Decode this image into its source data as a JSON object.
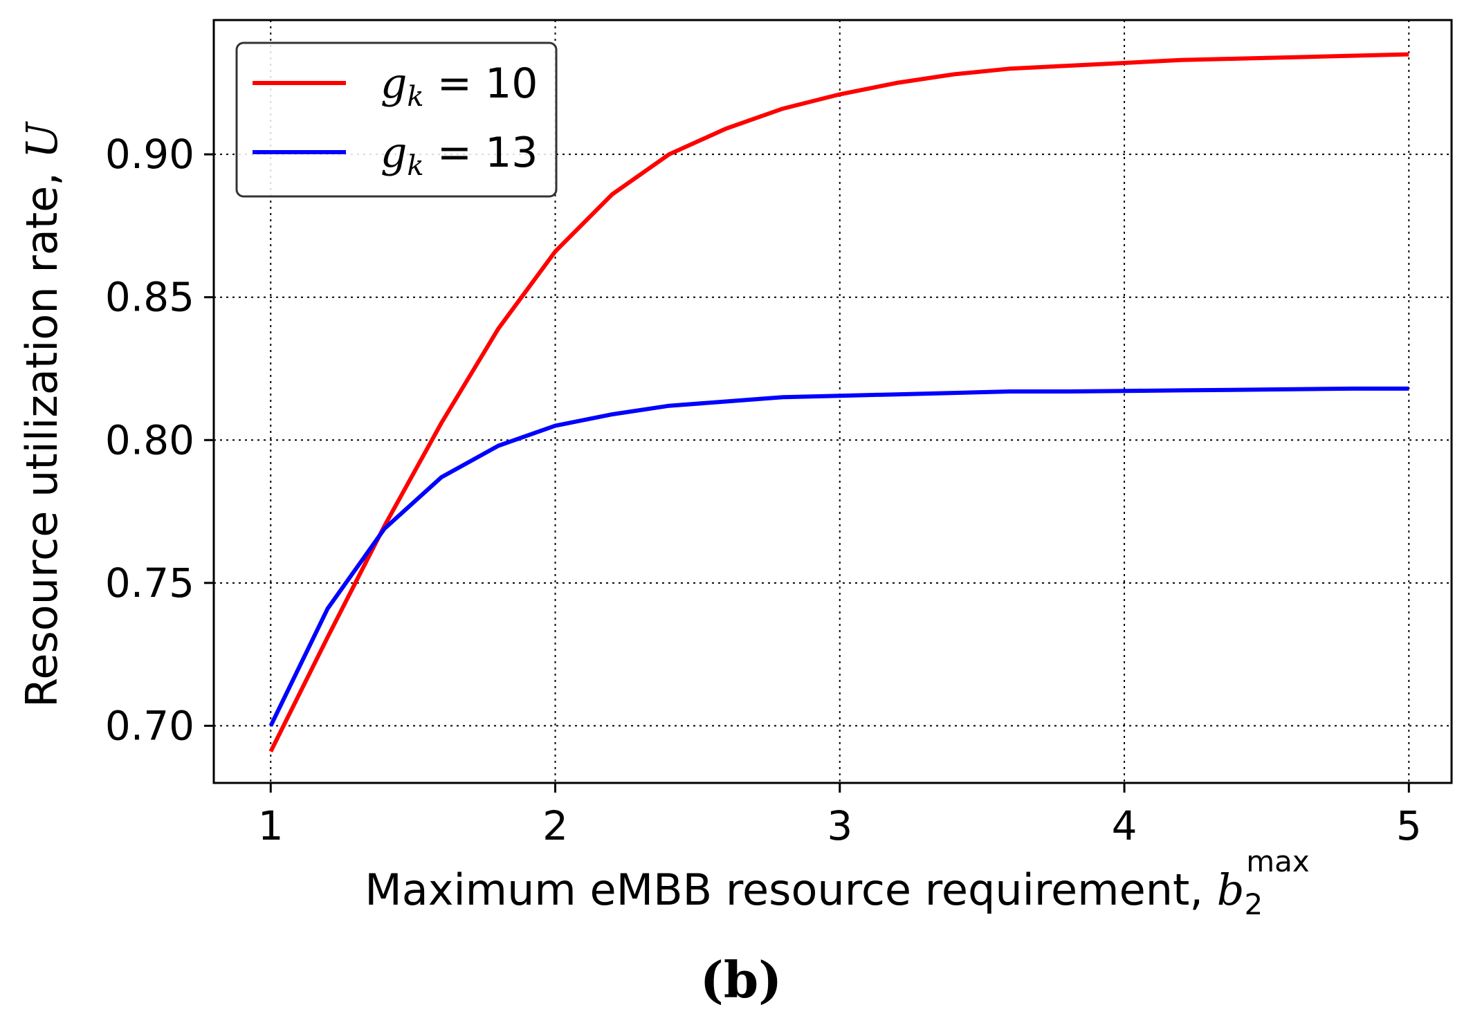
{
  "chart_data": {
    "type": "line",
    "xlabel_main": "Maximum eMBB resource requirement, ",
    "xlabel_var": "b",
    "xlabel_sub": "2",
    "xlabel_sup": "max",
    "ylabel_main": "Resource utilization rate, ",
    "ylabel_var": "U",
    "panel_label": "(b)",
    "xlim": [
      0.8,
      5.15
    ],
    "ylim": [
      0.68,
      0.947
    ],
    "xticks": [
      1,
      2,
      3,
      4,
      5
    ],
    "xtick_labels": [
      "1",
      "2",
      "3",
      "4",
      "5"
    ],
    "yticks": [
      0.7,
      0.75,
      0.8,
      0.85,
      0.9
    ],
    "ytick_labels": [
      "0.70",
      "0.75",
      "0.80",
      "0.85",
      "0.90"
    ],
    "grid": true,
    "legend_position": "top-left",
    "series": [
      {
        "name_var": "g",
        "name_sub": "k",
        "name_rest": " = 10",
        "color": "#ff0000",
        "x": [
          1.0,
          1.2,
          1.4,
          1.6,
          1.8,
          2.0,
          2.2,
          2.4,
          2.6,
          2.8,
          3.0,
          3.2,
          3.4,
          3.6,
          3.8,
          4.0,
          4.2,
          4.4,
          4.6,
          4.8,
          5.0
        ],
        "y": [
          0.691,
          0.731,
          0.77,
          0.806,
          0.839,
          0.866,
          0.886,
          0.9,
          0.909,
          0.916,
          0.921,
          0.925,
          0.928,
          0.93,
          0.931,
          0.932,
          0.933,
          0.9335,
          0.934,
          0.9345,
          0.935
        ]
      },
      {
        "name_var": "g",
        "name_sub": "k",
        "name_rest": " = 13",
        "color": "#0000ff",
        "x": [
          1.0,
          1.2,
          1.4,
          1.6,
          1.8,
          2.0,
          2.2,
          2.4,
          2.6,
          2.8,
          3.0,
          3.2,
          3.4,
          3.6,
          3.8,
          4.0,
          4.2,
          4.4,
          4.6,
          4.8,
          5.0
        ],
        "y": [
          0.7,
          0.741,
          0.769,
          0.787,
          0.798,
          0.805,
          0.809,
          0.812,
          0.8135,
          0.815,
          0.8155,
          0.816,
          0.8165,
          0.817,
          0.817,
          0.8172,
          0.8174,
          0.8176,
          0.8178,
          0.818,
          0.818
        ]
      }
    ]
  }
}
